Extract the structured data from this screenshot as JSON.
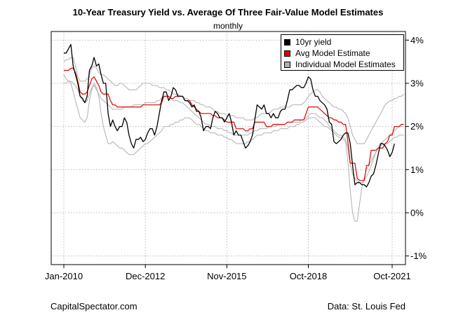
{
  "chart_data": {
    "type": "line",
    "title": "10-Year Treasury Yield vs. Average Of Three Fair-Value Model Estimates",
    "subtitle": "monthly",
    "frequency": "monthly",
    "x_tick_labels": [
      "Jan-2010",
      "Dec-2012",
      "Nov-2015",
      "Oct-2018",
      "Oct-2021"
    ],
    "x_range": [
      "2010-01",
      "2021-10"
    ],
    "y_tick_labels": [
      "-1%",
      "0%",
      "1%",
      "2%",
      "3%",
      "4%"
    ],
    "y_ticks": [
      -1,
      0,
      1,
      2,
      3,
      4
    ],
    "ylim": [
      -1.2,
      4.2
    ],
    "y_axis_side": "right",
    "grid": true,
    "legend_position": "top-right",
    "colors": {
      "ten_year": "#000000",
      "avg_model": "#e00000",
      "individual": "#b0b0b0"
    },
    "series": [
      {
        "name": "10yr yield",
        "key": "ten_year",
        "color": "#000000",
        "start": "2010-01",
        "values": [
          3.7,
          3.7,
          3.8,
          3.9,
          3.4,
          3.2,
          3.0,
          2.7,
          2.65,
          2.55,
          2.7,
          3.3,
          3.4,
          3.6,
          3.4,
          3.45,
          3.2,
          3.0,
          3.0,
          2.3,
          2.0,
          2.15,
          2.0,
          1.9,
          2.0,
          2.0,
          2.2,
          2.1,
          1.8,
          1.6,
          1.5,
          1.7,
          1.7,
          1.75,
          1.65,
          1.7,
          1.85,
          1.95,
          1.95,
          1.8,
          2.0,
          2.3,
          2.6,
          2.8,
          2.8,
          2.6,
          2.7,
          2.9,
          2.85,
          2.7,
          2.7,
          2.7,
          2.6,
          2.6,
          2.55,
          2.45,
          2.5,
          2.35,
          2.35,
          2.2,
          1.9,
          2.0,
          2.0,
          1.95,
          2.2,
          2.35,
          2.3,
          2.2,
          2.2,
          2.1,
          2.2,
          2.3,
          2.1,
          1.8,
          1.9,
          1.8,
          1.8,
          1.65,
          1.5,
          1.55,
          1.65,
          1.8,
          2.15,
          2.5,
          2.45,
          2.4,
          2.5,
          2.3,
          2.3,
          2.2,
          2.3,
          2.2,
          2.2,
          2.35,
          2.4,
          2.4,
          2.6,
          2.85,
          2.85,
          2.9,
          2.95,
          2.95,
          2.9,
          2.9,
          3.0,
          3.15,
          3.1,
          2.85,
          2.7,
          2.7,
          2.6,
          2.55,
          2.5,
          2.4,
          2.1,
          2.05,
          1.65,
          1.6,
          1.65,
          1.7,
          1.8,
          1.85,
          1.85,
          1.6,
          1.1,
          0.65,
          0.7,
          0.7,
          0.65,
          0.65,
          0.6,
          0.7,
          0.85,
          0.9,
          1.1,
          1.35,
          1.6,
          1.6,
          1.55,
          1.45,
          1.3,
          1.4,
          1.6
        ]
      },
      {
        "name": "Avg Model Estimate",
        "key": "avg_model",
        "color": "#e00000",
        "start": "2010-01",
        "values": [
          3.3,
          3.3,
          3.3,
          3.35,
          3.35,
          3.25,
          3.05,
          2.8,
          2.75,
          2.75,
          2.8,
          2.95,
          3.1,
          3.15,
          3.05,
          2.95,
          2.8,
          2.75,
          2.75,
          2.75,
          2.6,
          2.5,
          2.5,
          2.45,
          2.45,
          2.45,
          2.45,
          2.45,
          2.45,
          2.45,
          2.45,
          2.45,
          2.45,
          2.45,
          2.5,
          2.5,
          2.5,
          2.5,
          2.5,
          2.5,
          2.5,
          2.5,
          2.55,
          2.7,
          2.7,
          2.7,
          2.65,
          2.65,
          2.7,
          2.7,
          2.7,
          2.7,
          2.6,
          2.6,
          2.6,
          2.5,
          2.45,
          2.4,
          2.35,
          2.3,
          2.3,
          2.3,
          2.3,
          2.3,
          2.25,
          2.25,
          2.2,
          2.2,
          2.2,
          2.15,
          2.1,
          2.1,
          2.1,
          2.1,
          1.95,
          1.95,
          1.95,
          1.95,
          1.9,
          1.9,
          1.95,
          1.95,
          2.1,
          2.1,
          2.1,
          2.1,
          2.1,
          2.0,
          2.0,
          2.0,
          2.05,
          2.05,
          2.05,
          2.05,
          2.05,
          2.05,
          2.1,
          2.1,
          2.1,
          2.15,
          2.15,
          2.15,
          2.15,
          2.15,
          2.3,
          2.45,
          2.45,
          2.45,
          2.45,
          2.45,
          2.4,
          2.35,
          2.3,
          2.25,
          2.2,
          2.2,
          2.15,
          2.15,
          2.1,
          2.1,
          2.05,
          2.05,
          1.65,
          1.15,
          1.15,
          1.15,
          0.8,
          0.75,
          0.75,
          0.75,
          1.1,
          1.1,
          1.45,
          1.45,
          1.45,
          1.5,
          1.5,
          1.5,
          1.6,
          1.65,
          1.8,
          1.8,
          2.0,
          2.0,
          2.0,
          2.05,
          2.05
        ]
      },
      {
        "name": "Individual Model Estimates",
        "key": "individual_hi",
        "color": "#b0b0b0",
        "start": "2010-01",
        "values": [
          3.5,
          3.55,
          3.55,
          3.6,
          3.6,
          3.4,
          3.15,
          3.05,
          3.05,
          3.05,
          3.1,
          3.2,
          3.35,
          3.4,
          3.35,
          3.25,
          3.2,
          3.2,
          3.15,
          3.1,
          3.05,
          3.0,
          2.95,
          2.95,
          3.0,
          3.0,
          2.95,
          2.9,
          2.85,
          2.85,
          2.85,
          2.85,
          2.9,
          2.95,
          3.0,
          3.0,
          3.0,
          3.0,
          2.95,
          2.95,
          2.95,
          2.9,
          2.9,
          2.9,
          2.85,
          2.85,
          2.8,
          2.75,
          2.75,
          2.75,
          2.7,
          2.7,
          2.65,
          2.65,
          2.6,
          2.6,
          2.6,
          2.55,
          2.55,
          2.5,
          2.5,
          2.45,
          2.45,
          2.45,
          2.4,
          2.35,
          2.35,
          2.3,
          2.3,
          2.3,
          2.25,
          2.25,
          2.25,
          2.25,
          2.2,
          2.2,
          2.2,
          2.2,
          2.15,
          2.15,
          2.15,
          2.15,
          2.2,
          2.2,
          2.25,
          2.3,
          2.3,
          2.3,
          2.3,
          2.35,
          2.4,
          2.4,
          2.4,
          2.45,
          2.45,
          2.45,
          2.45,
          2.45,
          2.5,
          2.5,
          2.5,
          2.5,
          2.5,
          2.55,
          2.6,
          2.7,
          2.75,
          2.8,
          2.85,
          2.85,
          2.8,
          2.7,
          2.65,
          2.6,
          2.55,
          2.5,
          2.45,
          2.45,
          2.4,
          2.4,
          2.35,
          2.3,
          2.2,
          2.0,
          1.8,
          1.7,
          1.6,
          1.6,
          1.6,
          1.6,
          1.7,
          1.8,
          1.9,
          2.0,
          2.1,
          2.2,
          2.3,
          2.4,
          2.5,
          2.55,
          2.6,
          2.6,
          2.65,
          2.65,
          2.7,
          2.7,
          2.75
        ]
      },
      {
        "key": "individual_mid",
        "color": "#b0b0b0",
        "start": "2010-01",
        "values": [
          3.0,
          3.0,
          3.05,
          3.05,
          3.0,
          2.95,
          2.85,
          2.7,
          2.6,
          2.55,
          2.6,
          2.75,
          2.9,
          2.95,
          2.85,
          2.75,
          2.65,
          2.6,
          2.55,
          2.5,
          2.45,
          2.4,
          2.4,
          2.4,
          2.4,
          2.4,
          2.45,
          2.45,
          2.45,
          2.45,
          2.5,
          2.5,
          2.5,
          2.5,
          2.5,
          2.55,
          2.55,
          2.55,
          2.55,
          2.55,
          2.6,
          2.6,
          2.65,
          2.7,
          2.7,
          2.7,
          2.65,
          2.6,
          2.6,
          2.6,
          2.55,
          2.55,
          2.5,
          2.45,
          2.4,
          2.35,
          2.3,
          2.25,
          2.2,
          2.15,
          2.1,
          2.05,
          2.05,
          2.0,
          2.0,
          2.0,
          1.95,
          1.95,
          1.95,
          1.9,
          1.9,
          1.85,
          1.85,
          1.8,
          1.8,
          1.8,
          1.8,
          1.8,
          1.8,
          1.8,
          1.85,
          1.85,
          1.9,
          1.9,
          1.95,
          1.95,
          1.95,
          1.95,
          2.0,
          2.0,
          2.0,
          2.0,
          2.05,
          2.05,
          2.05,
          2.05,
          2.1,
          2.1,
          2.1,
          2.1,
          2.1,
          2.1,
          2.15,
          2.15,
          2.2,
          2.25,
          2.3,
          2.3,
          2.3,
          2.25,
          2.2,
          2.2,
          2.15,
          2.1,
          2.0,
          1.95,
          1.9,
          1.85,
          1.8,
          1.8,
          1.75,
          1.7,
          1.5,
          1.1,
          0.9,
          0.8,
          0.75,
          0.7,
          0.7,
          0.75,
          0.85,
          0.95,
          1.1,
          1.25,
          1.4,
          1.5,
          1.6,
          1.65,
          1.7,
          1.75,
          1.8,
          1.85,
          1.9,
          1.95,
          2.0,
          2.0,
          2.0
        ]
      },
      {
        "key": "individual_lo",
        "color": "#b0b0b0",
        "start": "2010-01",
        "values": [
          3.2,
          3.1,
          3.05,
          3.0,
          2.8,
          2.6,
          2.4,
          2.2,
          2.15,
          2.1,
          2.2,
          2.6,
          2.85,
          3.0,
          2.9,
          2.7,
          2.3,
          2.0,
          1.8,
          1.6,
          1.6,
          1.65,
          1.6,
          1.55,
          1.5,
          1.5,
          1.45,
          1.4,
          1.35,
          1.35,
          1.35,
          1.4,
          1.45,
          1.5,
          1.55,
          1.6,
          1.6,
          1.65,
          1.7,
          1.75,
          1.8,
          1.85,
          1.9,
          2.0,
          2.0,
          2.0,
          2.05,
          2.05,
          2.1,
          2.1,
          2.15,
          2.15,
          2.2,
          2.2,
          2.2,
          2.15,
          2.1,
          2.05,
          2.05,
          2.0,
          1.95,
          1.9,
          1.9,
          1.85,
          1.85,
          1.85,
          1.8,
          1.8,
          1.8,
          1.75,
          1.75,
          1.7,
          1.7,
          1.65,
          1.6,
          1.6,
          1.6,
          1.6,
          1.6,
          1.65,
          1.65,
          1.7,
          1.75,
          1.8,
          1.8,
          1.8,
          1.85,
          1.85,
          1.85,
          1.85,
          1.9,
          1.9,
          1.9,
          1.95,
          1.95,
          1.95,
          1.95,
          2.0,
          2.0,
          2.0,
          2.05,
          2.05,
          2.1,
          2.1,
          2.15,
          2.2,
          2.2,
          2.2,
          2.2,
          2.15,
          2.1,
          2.05,
          2.0,
          2.0,
          1.95,
          1.9,
          1.85,
          1.8,
          1.75,
          1.75,
          1.7,
          1.65,
          1.2,
          0.5,
          0.0,
          -0.2,
          -0.2,
          0.2,
          0.6,
          0.8,
          1.0,
          1.1,
          1.2,
          1.3,
          1.4,
          1.5,
          1.55,
          1.6,
          1.6,
          1.6,
          1.65,
          1.7,
          1.75,
          1.75,
          1.8,
          1.8,
          1.8
        ]
      }
    ]
  },
  "footer": {
    "source_left": "CapitalSpectator.com",
    "source_right": "Data: St. Louis Fed"
  }
}
